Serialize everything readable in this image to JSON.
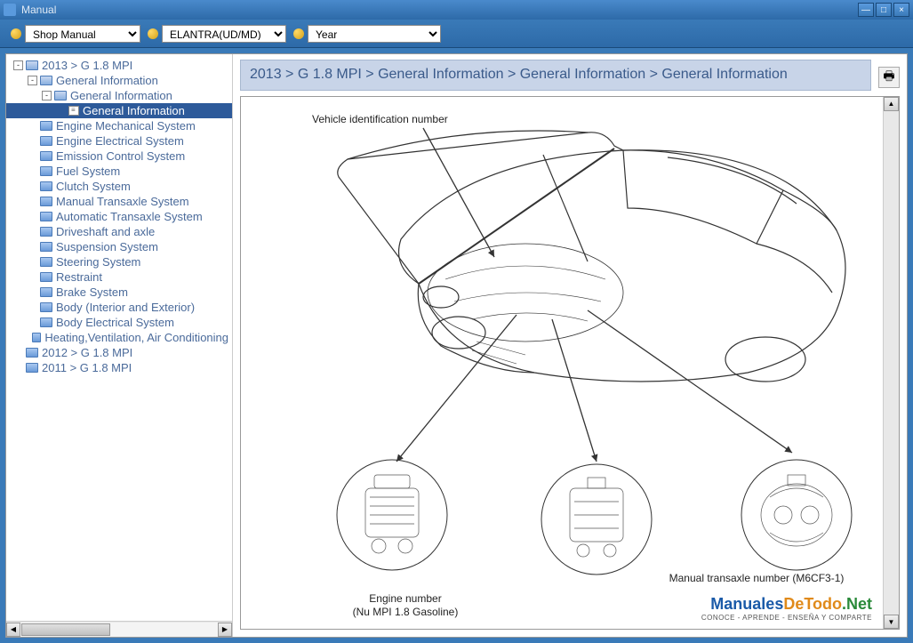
{
  "window": {
    "title": "Manual"
  },
  "toolbar": {
    "dropdowns": [
      {
        "value": "Shop Manual"
      },
      {
        "value": "ELANTRA(UD/MD)"
      },
      {
        "value": "Year"
      }
    ]
  },
  "tree": {
    "items": [
      {
        "indent": 0,
        "expand": "-",
        "icon": "folder-open",
        "label": "2013 > G 1.8 MPI",
        "selected": false
      },
      {
        "indent": 1,
        "expand": "-",
        "icon": "folder-open",
        "label": "General Information",
        "selected": false
      },
      {
        "indent": 2,
        "expand": "-",
        "icon": "folder-open",
        "label": "General Information",
        "selected": false
      },
      {
        "indent": 3,
        "expand": "",
        "icon": "doc",
        "label": "General Information",
        "selected": true
      },
      {
        "indent": 1,
        "expand": "",
        "icon": "folder",
        "label": "Engine Mechanical System",
        "selected": false
      },
      {
        "indent": 1,
        "expand": "",
        "icon": "folder",
        "label": "Engine Electrical System",
        "selected": false
      },
      {
        "indent": 1,
        "expand": "",
        "icon": "folder",
        "label": "Emission Control System",
        "selected": false
      },
      {
        "indent": 1,
        "expand": "",
        "icon": "folder",
        "label": "Fuel System",
        "selected": false
      },
      {
        "indent": 1,
        "expand": "",
        "icon": "folder",
        "label": "Clutch System",
        "selected": false
      },
      {
        "indent": 1,
        "expand": "",
        "icon": "folder",
        "label": "Manual Transaxle System",
        "selected": false
      },
      {
        "indent": 1,
        "expand": "",
        "icon": "folder",
        "label": "Automatic Transaxle System",
        "selected": false
      },
      {
        "indent": 1,
        "expand": "",
        "icon": "folder",
        "label": "Driveshaft and axle",
        "selected": false
      },
      {
        "indent": 1,
        "expand": "",
        "icon": "folder",
        "label": "Suspension System",
        "selected": false
      },
      {
        "indent": 1,
        "expand": "",
        "icon": "folder",
        "label": "Steering System",
        "selected": false
      },
      {
        "indent": 1,
        "expand": "",
        "icon": "folder",
        "label": "Restraint",
        "selected": false
      },
      {
        "indent": 1,
        "expand": "",
        "icon": "folder",
        "label": "Brake System",
        "selected": false
      },
      {
        "indent": 1,
        "expand": "",
        "icon": "folder",
        "label": "Body (Interior and Exterior)",
        "selected": false
      },
      {
        "indent": 1,
        "expand": "",
        "icon": "folder",
        "label": "Body Electrical System",
        "selected": false
      },
      {
        "indent": 1,
        "expand": "",
        "icon": "folder",
        "label": "Heating,Ventilation, Air Conditioning",
        "selected": false
      },
      {
        "indent": 0,
        "expand": "",
        "icon": "folder",
        "label": "2012 > G 1.8 MPI",
        "selected": false
      },
      {
        "indent": 0,
        "expand": "",
        "icon": "folder",
        "label": "2011 > G 1.8 MPI",
        "selected": false
      }
    ]
  },
  "breadcrumb": "2013 > G 1.8 MPI > General Information > General Information > General Information",
  "diagram": {
    "labels": {
      "vin": "Vehicle identification number",
      "engine_l1": "Engine number",
      "engine_l2": "(Nu MPI 1.8 Gasoline)",
      "transaxle": "Manual transaxle number (M6CF3-1)"
    }
  },
  "watermark": {
    "brand_a": "Manuales",
    "brand_b": "DeTodo",
    "brand_c": ".Net",
    "tagline": "CONOCE - APRENDE - ENSEÑA Y COMPARTE"
  },
  "colors": {
    "titlebar_top": "#4a8acc",
    "titlebar_bottom": "#2d6aa8",
    "tree_text": "#4a6a9a",
    "tree_selected_bg": "#2d5a9a",
    "breadcrumb_bg": "#c8d4e8",
    "breadcrumb_text": "#3a5a8a"
  }
}
